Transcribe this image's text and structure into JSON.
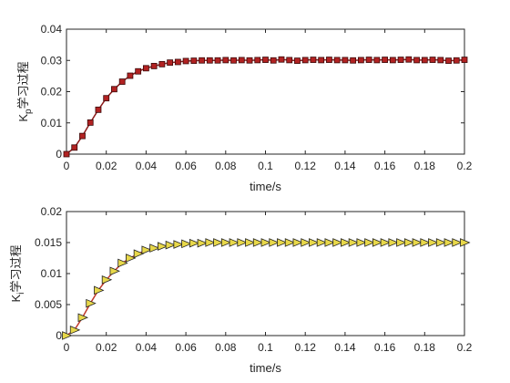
{
  "chart_data": [
    {
      "type": "line",
      "xlabel": "time/s",
      "ylabel": {
        "main": "K",
        "sub": "p",
        "suffix": "学习过程"
      },
      "xlim": [
        0,
        0.2
      ],
      "ylim": [
        0,
        0.04
      ],
      "xticks": [
        0,
        0.02,
        0.04,
        0.06,
        0.08,
        0.1,
        0.12,
        0.14,
        0.16,
        0.18,
        0.2
      ],
      "xtick_labels": [
        "0",
        "0.02",
        "0.04",
        "0.06",
        "0.08",
        "0.1",
        "0.12",
        "0.14",
        "0.16",
        "0.18",
        "0.2"
      ],
      "yticks": [
        0,
        0.01,
        0.02,
        0.03,
        0.04
      ],
      "ytick_labels": [
        "0",
        "0.01",
        "0.02",
        "0.03",
        "0.04"
      ],
      "grid": false,
      "series": [
        {
          "marker": "square",
          "line_color": "#8b1a1a",
          "marker_fill": "#b22222",
          "marker_edge": "#3a0a0a",
          "x": [
            0,
            0.004,
            0.008,
            0.012,
            0.016,
            0.02,
            0.024,
            0.028,
            0.032,
            0.036,
            0.04,
            0.044,
            0.048,
            0.052,
            0.056,
            0.06,
            0.064,
            0.068,
            0.072,
            0.076,
            0.08,
            0.084,
            0.088,
            0.092,
            0.096,
            0.1,
            0.104,
            0.108,
            0.112,
            0.116,
            0.12,
            0.124,
            0.128,
            0.132,
            0.136,
            0.14,
            0.144,
            0.148,
            0.152,
            0.156,
            0.16,
            0.164,
            0.168,
            0.172,
            0.176,
            0.18,
            0.184,
            0.188,
            0.192,
            0.196,
            0.2
          ],
          "y": [
            0,
            0.0021,
            0.0058,
            0.0101,
            0.0142,
            0.0179,
            0.0208,
            0.0232,
            0.0251,
            0.0265,
            0.0275,
            0.0282,
            0.0288,
            0.0293,
            0.0295,
            0.0298,
            0.0299,
            0.03,
            0.03,
            0.03,
            0.0301,
            0.03,
            0.0301,
            0.03,
            0.0301,
            0.0302,
            0.03,
            0.0303,
            0.0301,
            0.0299,
            0.0301,
            0.0302,
            0.0301,
            0.0302,
            0.0301,
            0.0301,
            0.03,
            0.0301,
            0.0302,
            0.0301,
            0.0302,
            0.0301,
            0.0302,
            0.0303,
            0.0301,
            0.0301,
            0.0302,
            0.0301,
            0.0299,
            0.03,
            0.0302
          ]
        }
      ]
    },
    {
      "type": "line",
      "xlabel": "time/s",
      "ylabel": {
        "main": "K",
        "sub": "i",
        "suffix": "学习过程"
      },
      "xlim": [
        0,
        0.2
      ],
      "ylim": [
        0,
        0.02
      ],
      "xticks": [
        0,
        0.02,
        0.04,
        0.06,
        0.08,
        0.1,
        0.12,
        0.14,
        0.16,
        0.18,
        0.2
      ],
      "xtick_labels": [
        "0",
        "0.02",
        "0.04",
        "0.06",
        "0.08",
        "0.1",
        "0.12",
        "0.14",
        "0.16",
        "0.18",
        "0.2"
      ],
      "yticks": [
        0,
        0.005,
        0.01,
        0.015,
        0.02
      ],
      "ytick_labels": [
        "0",
        "0.005",
        "0.01",
        "0.015",
        "0.02"
      ],
      "grid": false,
      "series": [
        {
          "marker": "triangle-right",
          "line_color": "#c0392b",
          "marker_fill": "#e8d84a",
          "marker_edge": "#222222",
          "x": [
            0,
            0.004,
            0.008,
            0.012,
            0.016,
            0.02,
            0.024,
            0.028,
            0.032,
            0.036,
            0.04,
            0.044,
            0.048,
            0.052,
            0.056,
            0.06,
            0.064,
            0.068,
            0.072,
            0.076,
            0.08,
            0.084,
            0.088,
            0.092,
            0.096,
            0.1,
            0.104,
            0.108,
            0.112,
            0.116,
            0.12,
            0.124,
            0.128,
            0.132,
            0.136,
            0.14,
            0.144,
            0.148,
            0.152,
            0.156,
            0.16,
            0.164,
            0.168,
            0.172,
            0.176,
            0.18,
            0.184,
            0.188,
            0.192,
            0.196,
            0.2
          ],
          "y": [
            0,
            0.0009,
            0.0029,
            0.0052,
            0.0073,
            0.009,
            0.0104,
            0.0117,
            0.0125,
            0.0132,
            0.0138,
            0.0141,
            0.0144,
            0.0146,
            0.0147,
            0.0148,
            0.0149,
            0.0149,
            0.015,
            0.015,
            0.015,
            0.015,
            0.015,
            0.015,
            0.015,
            0.015,
            0.015,
            0.015,
            0.015,
            0.015,
            0.015,
            0.015,
            0.015,
            0.015,
            0.015,
            0.015,
            0.015,
            0.015,
            0.015,
            0.015,
            0.015,
            0.015,
            0.015,
            0.015,
            0.015,
            0.015,
            0.015,
            0.015,
            0.015,
            0.015,
            0.015
          ]
        }
      ]
    }
  ]
}
